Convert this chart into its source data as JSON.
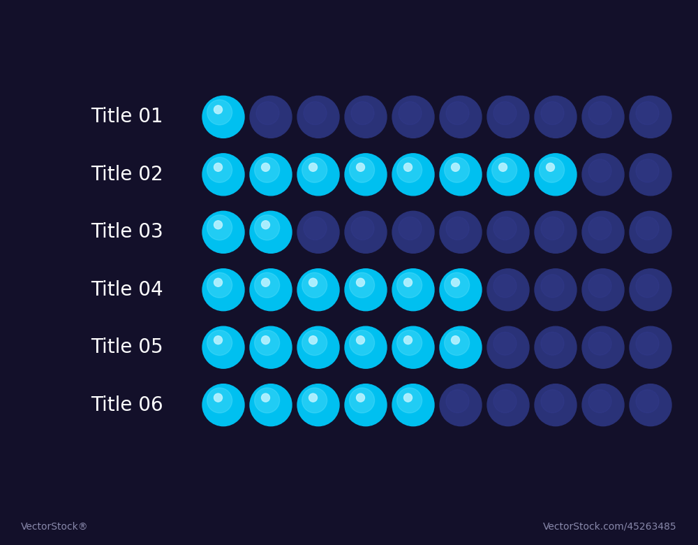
{
  "background_color": "#13102a",
  "chart_bg_color": "#1d1b3a",
  "rows": [
    {
      "label": "Title 01",
      "filled": 1
    },
    {
      "label": "Title 02",
      "filled": 8
    },
    {
      "label": "Title 03",
      "filled": 2
    },
    {
      "label": "Title 04",
      "filled": 6
    },
    {
      "label": "Title 05",
      "filled": 6
    },
    {
      "label": "Title 06",
      "filled": 5
    }
  ],
  "total_dots": 10,
  "cyan_base": "#00c0f0",
  "cyan_highlight": "#70e8ff",
  "dark_base": "#2a3278",
  "dark_highlight": "#3a42a0",
  "label_color": "#ffffff",
  "label_fontsize": 20,
  "watermark_left": "VectorStock®",
  "watermark_right": "VectorStock.com/45263485",
  "watermark_color": "#8888aa",
  "watermark_fontsize": 10
}
